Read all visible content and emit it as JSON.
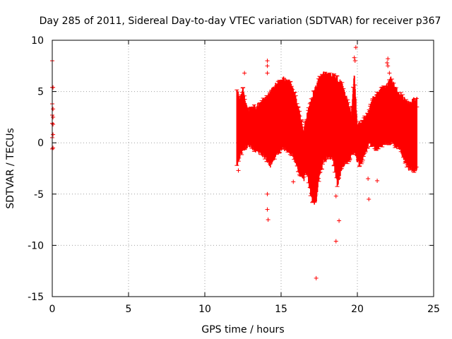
{
  "chart_data": {
    "type": "scatter",
    "title": "Day 285 of 2011, Sidereal Day-to-day VTEC variation (SDTVAR) for receiver p367",
    "xlabel": "GPS time / hours",
    "ylabel": "SDTVAR / TECUs",
    "xlim": [
      0,
      25
    ],
    "ylim": [
      -15,
      10
    ],
    "xticks": [
      0,
      5,
      10,
      15,
      20,
      25
    ],
    "yticks": [
      10,
      5,
      0,
      -5,
      -10,
      -15
    ],
    "xtick_labels": [
      "0",
      "5",
      "10",
      "15",
      "20",
      "25"
    ],
    "ytick_labels": [
      "10",
      "5",
      "0",
      "-5",
      "-10",
      "-15"
    ],
    "grid": true,
    "marker": "+",
    "color": "#ff0000",
    "series": [
      {
        "name": "SDTVAR",
        "band_profile_x": [
          12.1,
          12.3,
          12.5,
          12.8,
          13.0,
          13.3,
          13.6,
          13.9,
          14.1,
          14.3,
          14.6,
          14.9,
          15.2,
          15.5,
          15.8,
          16.0,
          16.3,
          16.5,
          16.7,
          16.9,
          17.1,
          17.3,
          17.5,
          17.8,
          18.1,
          18.4,
          18.7,
          19.0,
          19.3,
          19.6,
          19.8,
          20.0,
          20.2,
          20.4,
          20.7,
          21.0,
          21.3,
          21.6,
          21.9,
          22.2,
          22.5,
          22.8,
          23.1,
          23.4,
          23.7,
          23.9
        ],
        "band_profile_ymin": [
          -2.5,
          -1.5,
          -1.0,
          -0.5,
          -0.5,
          -1.0,
          -1.2,
          -1.5,
          -2.0,
          -2.5,
          -1.5,
          -1.0,
          -0.8,
          -1.0,
          -1.5,
          -2.5,
          -3.5,
          -3.8,
          -3.0,
          -5.0,
          -6.2,
          -6.0,
          -3.5,
          -2.0,
          -1.5,
          -1.8,
          -4.5,
          -2.5,
          -2.2,
          -1.5,
          -1.0,
          -2.0,
          -2.5,
          -1.5,
          -0.5,
          -0.5,
          -0.8,
          -0.5,
          -0.3,
          -0.2,
          -0.5,
          -0.8,
          -2.0,
          -2.8,
          -3.0,
          -2.8
        ],
        "band_profile_ymax": [
          5.5,
          4.5,
          5.5,
          3.5,
          3.5,
          3.8,
          4.0,
          4.5,
          4.8,
          5.2,
          5.8,
          6.2,
          6.5,
          6.3,
          5.5,
          4.5,
          2.5,
          1.5,
          3.0,
          4.0,
          5.0,
          5.8,
          6.5,
          7.0,
          7.0,
          6.8,
          6.5,
          6.0,
          4.5,
          3.0,
          7.0,
          2.0,
          2.2,
          2.5,
          3.0,
          4.5,
          5.0,
          5.5,
          5.8,
          6.5,
          5.5,
          5.0,
          4.5,
          4.0,
          4.5,
          4.5
        ],
        "points": [
          [
            0.0,
            8.0
          ],
          [
            0.0,
            5.4
          ],
          [
            0.0,
            3.8
          ],
          [
            0.0,
            2.7
          ],
          [
            0.0,
            1.9
          ],
          [
            0.0,
            0.5
          ],
          [
            0.0,
            -0.6
          ],
          [
            0.05,
            5.4
          ],
          [
            0.05,
            3.3
          ],
          [
            0.05,
            2.5
          ],
          [
            0.05,
            1.8
          ],
          [
            0.05,
            0.8
          ],
          [
            0.05,
            -0.5
          ],
          [
            14.1,
            8.0
          ],
          [
            14.1,
            7.5
          ],
          [
            14.1,
            6.8
          ],
          [
            14.1,
            -5.0
          ],
          [
            14.1,
            -6.5
          ],
          [
            14.15,
            -7.5
          ],
          [
            15.8,
            -3.8
          ],
          [
            17.3,
            -13.2
          ],
          [
            18.6,
            -9.6
          ],
          [
            18.8,
            -7.6
          ],
          [
            18.6,
            -5.2
          ],
          [
            19.9,
            9.3
          ],
          [
            19.85,
            8.0
          ],
          [
            19.8,
            8.3
          ],
          [
            20.75,
            -5.5
          ],
          [
            20.7,
            -3.5
          ],
          [
            21.3,
            -3.7
          ],
          [
            22.0,
            8.2
          ],
          [
            22.0,
            7.5
          ],
          [
            21.95,
            7.8
          ],
          [
            22.1,
            6.8
          ],
          [
            12.2,
            -2.7
          ],
          [
            12.6,
            6.8
          ],
          [
            23.9,
            3.5
          ]
        ]
      }
    ]
  }
}
